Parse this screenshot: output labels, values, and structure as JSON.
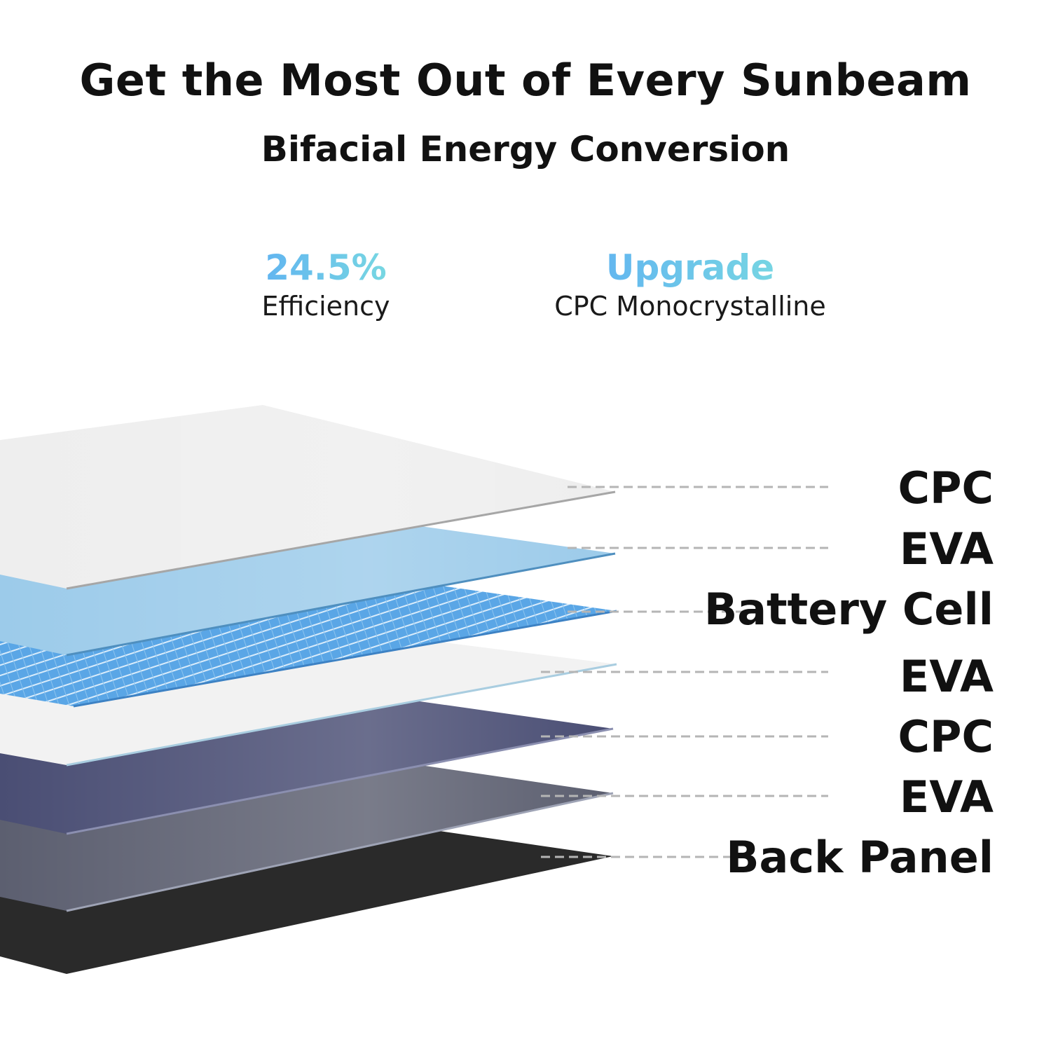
{
  "header": {
    "title": "Get the Most Out of Every Sunbeam",
    "subtitle": "Bifacial Energy Conversion"
  },
  "stats": [
    {
      "value": "24.5%",
      "caption": "Efficiency"
    },
    {
      "value": "Upgrade",
      "caption": "CPC Monocrystalline"
    }
  ],
  "layers": [
    {
      "label": "CPC",
      "color": "#eeeeee"
    },
    {
      "label": "EVA",
      "color": "#9ccbea"
    },
    {
      "label": "Battery Cell",
      "color": "#5aa6e6"
    },
    {
      "label": "EVA",
      "color": "#f2f2f2"
    },
    {
      "label": "CPC",
      "color": "#4a4e74"
    },
    {
      "label": "EVA",
      "color": "#5c5f70"
    },
    {
      "label": "Back Panel",
      "color": "#2a2a2a"
    }
  ],
  "colors": {
    "accent_start": "#5aa9f5",
    "accent_end": "#7fe3dd",
    "leader_line": "#b5b5b5"
  }
}
